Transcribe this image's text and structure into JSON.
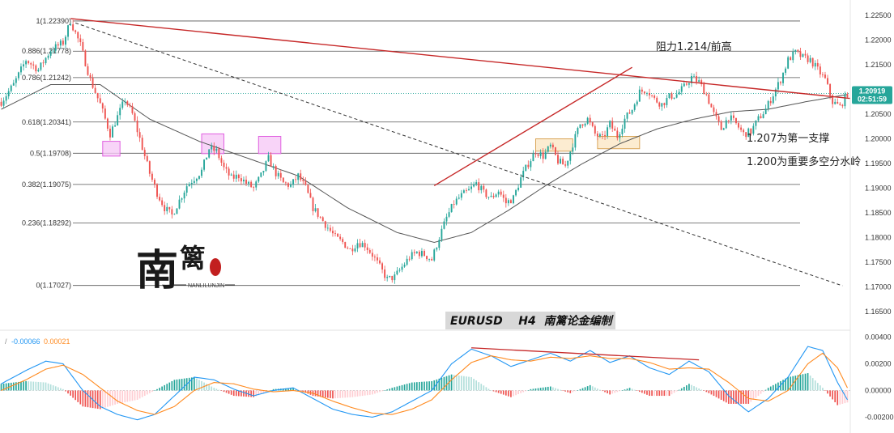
{
  "chart_data": {
    "type": "candlestick",
    "symbol_caption": "EURUSD    H4  南篱论金编制",
    "price_axis": {
      "ylim": [
        1.1625,
        1.2275
      ],
      "ticks": [
        "1.22500",
        "1.22000",
        "1.21500",
        "1.21000",
        "1.20500",
        "1.20000",
        "1.19500",
        "1.19000",
        "1.18500",
        "1.18000",
        "1.17500",
        "1.17000",
        "1.16500"
      ],
      "current_price": "1.20919",
      "countdown": "02:51:59",
      "current_value": 1.20919
    },
    "fib_levels": [
      {
        "label": "1(1.22390)",
        "value": 1.2239
      },
      {
        "label": "0.886(1.21778)",
        "value": 1.21778
      },
      {
        "label": "0.786(1.21242)",
        "value": 1.21242
      },
      {
        "label": "0.618(1.20341)",
        "value": 1.20341
      },
      {
        "label": "0.5(1.19708)",
        "value": 1.19708
      },
      {
        "label": "0.382(1.19075)",
        "value": 1.19075
      },
      {
        "label": "0.236(1.18292)",
        "value": 1.18292
      },
      {
        "label": "0(1.17027)",
        "value": 1.17027
      }
    ],
    "annotations": [
      {
        "text": "阻力1.214/前高"
      },
      {
        "text": "1.207为第一支撑"
      },
      {
        "text": "1.200为重要多空分水岭"
      }
    ],
    "price_path": [
      [
        0,
        1.2075
      ],
      [
        5,
        1.211
      ],
      [
        10,
        1.216
      ],
      [
        15,
        1.214
      ],
      [
        20,
        1.218
      ],
      [
        25,
        1.2195
      ],
      [
        28,
        1.2239
      ],
      [
        32,
        1.219
      ],
      [
        36,
        1.212
      ],
      [
        40,
        1.207
      ],
      [
        44,
        1.201
      ],
      [
        47,
        1.2045
      ],
      [
        50,
        1.208
      ],
      [
        53,
        1.205
      ],
      [
        56,
        1.2
      ],
      [
        60,
        1.193
      ],
      [
        63,
        1.189
      ],
      [
        66,
        1.186
      ],
      [
        69,
        1.1845
      ],
      [
        72,
        1.1875
      ],
      [
        75,
        1.1905
      ],
      [
        78,
        1.192
      ],
      [
        81,
        1.1935
      ],
      [
        84,
        1.198
      ],
      [
        87,
        1.1975
      ],
      [
        90,
        1.194
      ],
      [
        93,
        1.192
      ],
      [
        96,
        1.1925
      ],
      [
        99,
        1.191
      ],
      [
        102,
        1.19
      ],
      [
        105,
        1.1925
      ],
      [
        108,
        1.196
      ],
      [
        111,
        1.193
      ],
      [
        114,
        1.191
      ],
      [
        117,
        1.1905
      ],
      [
        120,
        1.1925
      ],
      [
        123,
        1.19
      ],
      [
        126,
        1.186
      ],
      [
        129,
        1.184
      ],
      [
        132,
        1.182
      ],
      [
        135,
        1.18
      ],
      [
        138,
        1.179
      ],
      [
        141,
        1.1775
      ],
      [
        144,
        1.179
      ],
      [
        147,
        1.1785
      ],
      [
        150,
        1.1765
      ],
      [
        153,
        1.174
      ],
      [
        156,
        1.1715
      ],
      [
        159,
        1.172
      ],
      [
        162,
        1.174
      ],
      [
        165,
        1.176
      ],
      [
        168,
        1.177
      ],
      [
        171,
        1.1765
      ],
      [
        174,
        1.1755
      ],
      [
        177,
        1.18
      ],
      [
        180,
        1.184
      ],
      [
        183,
        1.187
      ],
      [
        186,
        1.1885
      ],
      [
        189,
        1.1895
      ],
      [
        192,
        1.191
      ],
      [
        195,
        1.189
      ],
      [
        198,
        1.188
      ],
      [
        201,
        1.1895
      ],
      [
        204,
        1.187
      ],
      [
        207,
        1.188
      ],
      [
        210,
        1.192
      ],
      [
        213,
        1.195
      ],
      [
        216,
        1.1975
      ],
      [
        219,
        1.1965
      ],
      [
        222,
        1.1985
      ],
      [
        225,
        1.1955
      ],
      [
        228,
        1.1945
      ],
      [
        231,
        1.199
      ],
      [
        234,
        1.203
      ],
      [
        237,
        1.204
      ],
      [
        240,
        1.201
      ],
      [
        243,
        1.2
      ],
      [
        246,
        1.203
      ],
      [
        249,
        1.2005
      ],
      [
        252,
        1.204
      ],
      [
        255,
        1.206
      ],
      [
        258,
        1.2095
      ],
      [
        261,
        1.21
      ],
      [
        264,
        1.208
      ],
      [
        267,
        1.207
      ],
      [
        270,
        1.2085
      ],
      [
        273,
        1.209
      ],
      [
        276,
        1.2105
      ],
      [
        279,
        1.2125
      ],
      [
        282,
        1.2115
      ],
      [
        285,
        1.209
      ],
      [
        288,
        1.205
      ],
      [
        291,
        1.202
      ],
      [
        294,
        1.2045
      ],
      [
        297,
        1.203
      ],
      [
        300,
        1.201
      ],
      [
        303,
        1.2015
      ],
      [
        306,
        1.204
      ],
      [
        309,
        1.206
      ],
      [
        312,
        1.209
      ],
      [
        315,
        1.212
      ],
      [
        318,
        1.216
      ],
      [
        321,
        1.2175
      ],
      [
        324,
        1.2165
      ],
      [
        327,
        1.216
      ],
      [
        330,
        1.214
      ],
      [
        333,
        1.212
      ],
      [
        336,
        1.2075
      ],
      [
        339,
        1.2065
      ],
      [
        342,
        1.2092
      ]
    ],
    "ma_path": [
      [
        0,
        1.206
      ],
      [
        20,
        1.211
      ],
      [
        40,
        1.211
      ],
      [
        60,
        1.204
      ],
      [
        80,
        1.1995
      ],
      [
        100,
        1.196
      ],
      [
        120,
        1.1925
      ],
      [
        140,
        1.186
      ],
      [
        160,
        1.181
      ],
      [
        175,
        1.179
      ],
      [
        190,
        1.181
      ],
      [
        205,
        1.1855
      ],
      [
        220,
        1.1905
      ],
      [
        235,
        1.195
      ],
      [
        250,
        1.199
      ],
      [
        265,
        1.202
      ],
      [
        280,
        1.204
      ],
      [
        295,
        1.2055
      ],
      [
        310,
        1.206
      ],
      [
        325,
        1.2075
      ],
      [
        342,
        1.209
      ]
    ],
    "trendlines": [
      {
        "name": "down-resistance",
        "style": "solid",
        "color": "#c62828",
        "from": [
          28,
          1.2244
        ],
        "to": [
          343,
          1.2082
        ]
      },
      {
        "name": "dashed-channel",
        "style": "dashed",
        "color": "#333333",
        "from": [
          30,
          1.2235
        ],
        "to": [
          340,
          1.1702
        ]
      },
      {
        "name": "up-channel",
        "style": "solid",
        "color": "#c62828",
        "from": [
          175,
          1.1905
        ],
        "to": [
          255,
          1.2145
        ]
      }
    ],
    "zones": [
      {
        "color": "#e060e0",
        "fill": "#f6c9f6",
        "from": [
          41,
          1.1995
        ],
        "to": [
          48,
          1.1965
        ]
      },
      {
        "color": "#e060e0",
        "fill": "#f6c9f6",
        "from": [
          81,
          1.201
        ],
        "to": [
          90,
          1.197
        ]
      },
      {
        "color": "#e060e0",
        "fill": "#f6c9f6",
        "from": [
          104,
          1.2005
        ],
        "to": [
          113,
          1.197
        ]
      },
      {
        "color": "#d9a55a",
        "fill": "#fbe7c6",
        "from": [
          216,
          1.2
        ],
        "to": [
          231,
          1.1975
        ]
      },
      {
        "color": "#d9a55a",
        "fill": "#fbe7c6",
        "from": [
          241,
          1.2005
        ],
        "to": [
          258,
          1.198
        ]
      }
    ],
    "macd": {
      "legend_dif": "-0.00066",
      "legend_dea": "0.00021",
      "ylim": [
        -0.0024,
        0.0044
      ],
      "ticks": [
        "0.00400",
        "0.00200",
        "0.00000",
        "-0.00200"
      ],
      "dif_color": "#2196f3",
      "dea_color": "#ff8a1f",
      "hist_up_color": "#26a69a",
      "hist_down_color": "#ef5350",
      "dif": [
        [
          0,
          0.0005
        ],
        [
          10,
          0.0015
        ],
        [
          18,
          0.0022
        ],
        [
          25,
          0.002
        ],
        [
          33,
          0.0
        ],
        [
          40,
          -0.0012
        ],
        [
          47,
          -0.0018
        ],
        [
          55,
          -0.0022
        ],
        [
          62,
          -0.0018
        ],
        [
          70,
          -0.0004
        ],
        [
          78,
          0.001
        ],
        [
          86,
          0.0008
        ],
        [
          94,
          0.0001
        ],
        [
          102,
          -0.0004
        ],
        [
          110,
          0.0
        ],
        [
          118,
          0.0002
        ],
        [
          126,
          -0.0006
        ],
        [
          134,
          -0.0014
        ],
        [
          142,
          -0.0018
        ],
        [
          150,
          -0.002
        ],
        [
          158,
          -0.0016
        ],
        [
          166,
          -0.0008
        ],
        [
          174,
          0.0
        ],
        [
          182,
          0.002
        ],
        [
          190,
          0.0031
        ],
        [
          198,
          0.0026
        ],
        [
          206,
          0.0018
        ],
        [
          214,
          0.0023
        ],
        [
          222,
          0.0028
        ],
        [
          230,
          0.0022
        ],
        [
          238,
          0.003
        ],
        [
          246,
          0.0021
        ],
        [
          254,
          0.0026
        ],
        [
          262,
          0.0017
        ],
        [
          270,
          0.0012
        ],
        [
          278,
          0.0022
        ],
        [
          286,
          0.0014
        ],
        [
          294,
          -0.0004
        ],
        [
          302,
          -0.0016
        ],
        [
          310,
          -0.0006
        ],
        [
          318,
          0.001
        ],
        [
          326,
          0.0033
        ],
        [
          332,
          0.003
        ],
        [
          338,
          0.0006
        ],
        [
          342,
          -0.0007
        ]
      ],
      "dea": [
        [
          0,
          0.0
        ],
        [
          10,
          0.0008
        ],
        [
          18,
          0.0016
        ],
        [
          25,
          0.0019
        ],
        [
          33,
          0.0012
        ],
        [
          40,
          0.0002
        ],
        [
          47,
          -0.0008
        ],
        [
          55,
          -0.0015
        ],
        [
          62,
          -0.0018
        ],
        [
          70,
          -0.0012
        ],
        [
          78,
          0.0
        ],
        [
          86,
          0.0006
        ],
        [
          94,
          0.0005
        ],
        [
          102,
          0.0001
        ],
        [
          110,
          -0.0001
        ],
        [
          118,
          0.0
        ],
        [
          126,
          -0.0002
        ],
        [
          134,
          -0.0008
        ],
        [
          142,
          -0.0013
        ],
        [
          150,
          -0.0017
        ],
        [
          158,
          -0.0018
        ],
        [
          166,
          -0.0014
        ],
        [
          174,
          -0.0007
        ],
        [
          182,
          0.0008
        ],
        [
          190,
          0.0021
        ],
        [
          198,
          0.0026
        ],
        [
          206,
          0.0023
        ],
        [
          214,
          0.0022
        ],
        [
          222,
          0.0025
        ],
        [
          230,
          0.0024
        ],
        [
          238,
          0.0026
        ],
        [
          246,
          0.0024
        ],
        [
          254,
          0.0024
        ],
        [
          262,
          0.0021
        ],
        [
          270,
          0.0016
        ],
        [
          278,
          0.0017
        ],
        [
          286,
          0.0016
        ],
        [
          294,
          0.0006
        ],
        [
          302,
          -0.0006
        ],
        [
          310,
          -0.0008
        ],
        [
          318,
          0.0
        ],
        [
          326,
          0.002
        ],
        [
          332,
          0.0028
        ],
        [
          338,
          0.0017
        ],
        [
          342,
          0.0002
        ]
      ],
      "trendline": {
        "from": [
          190,
          0.0032
        ],
        "to": [
          282,
          0.0023
        ],
        "color": "#c62828"
      }
    }
  },
  "branding": {
    "logo_main": "南",
    "logo_sub": "篱",
    "logo_caption": "NANLILUNJIN"
  }
}
